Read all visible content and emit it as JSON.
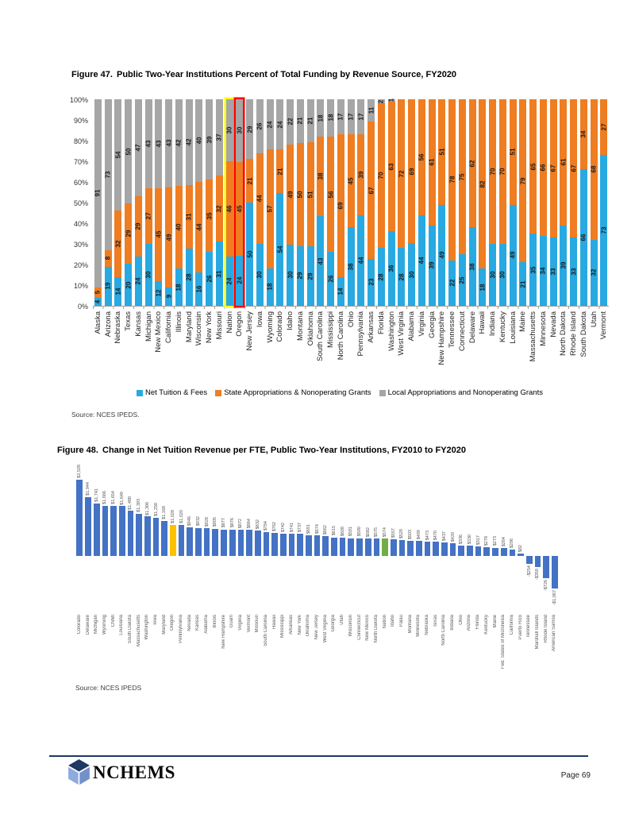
{
  "page": {
    "number_label": "Page 69",
    "brand": "NCHEMS"
  },
  "figure47": {
    "label": "Figure 47.",
    "title": "Public Two-Year Institutions Percent of Total Funding by Revenue Source, FY2020",
    "source": "Source: NCES IPEDS.",
    "y_ticks": [
      "100%",
      "90%",
      "80%",
      "70%",
      "60%",
      "50%",
      "40%",
      "30%",
      "20%",
      "10%",
      "0%"
    ]
  },
  "figure48": {
    "label": "Figure 48.",
    "title": "Change in Net Tuition Revenue per FTE, Public Two-Year Institutions, FY2010 to FY2020",
    "source": "Source: NCES IPEDS"
  },
  "chart_data": [
    {
      "id": "fig47",
      "type": "bar",
      "subtype": "stacked-100-percent",
      "title": "Public Two-Year Institutions Percent of Total Funding by Revenue Source, FY2020",
      "ylabel": "",
      "xlabel": "",
      "ylim": [
        0,
        100
      ],
      "grid": false,
      "legend_position": "bottom",
      "categories": [
        "Alaska",
        "Arizona",
        "Nebraska",
        "Texas",
        "Kansas",
        "Michigan",
        "New Mexico",
        "California",
        "Illinois",
        "Maryland",
        "Wisconsin",
        "New York",
        "Missouri",
        "Nation",
        "Oregon",
        "New Jersey",
        "Iowa",
        "Wyoming",
        "Colorado",
        "Idaho",
        "Montana",
        "Oklahoma",
        "South Carolina",
        "Mississippi",
        "North Carolina",
        "Ohio",
        "Pennsylvania",
        "Arkansas",
        "Florida",
        "Washington",
        "West Virginia",
        "Alabama",
        "Virginia",
        "Georgia",
        "New Hampshire",
        "Tennessee",
        "Connecticut",
        "Delaware",
        "Hawaii",
        "Indiana",
        "Kentucky",
        "Louisiana",
        "Maine",
        "Massachusetts",
        "Minnesota",
        "Nevada",
        "North Dakota",
        "Rhode Island",
        "South Dakota",
        "Utah",
        "Vermont"
      ],
      "series": [
        {
          "name": "Net Tuition & Fees",
          "color": "#29A9E1",
          "values": [
            4,
            19,
            14,
            20,
            24,
            30,
            12,
            9,
            18,
            28,
            16,
            26,
            31,
            24,
            24,
            50,
            30,
            18,
            54,
            30,
            29,
            29,
            43,
            26,
            14,
            38,
            44,
            23,
            28,
            36,
            28,
            30,
            44,
            39,
            49,
            22,
            25,
            38,
            18,
            30,
            30,
            49,
            21,
            35,
            34,
            33,
            39,
            33,
            66,
            32,
            73
          ]
        },
        {
          "name": "State Appropriations & Nonoperating Grants",
          "color": "#EF7D22",
          "values": [
            5,
            8,
            32,
            29,
            29,
            27,
            45,
            49,
            40,
            31,
            44,
            35,
            32,
            46,
            45,
            21,
            44,
            57,
            21,
            49,
            50,
            51,
            38,
            56,
            69,
            45,
            39,
            67,
            70,
            63,
            72,
            69,
            56,
            61,
            51,
            78,
            75,
            62,
            82,
            70,
            70,
            51,
            79,
            65,
            66,
            67,
            61,
            67,
            34,
            68,
            27
          ]
        },
        {
          "name": "Local Appropriations and Nonoperating Grants",
          "color": "#A6A6A6",
          "values": [
            91,
            73,
            54,
            50,
            47,
            43,
            43,
            43,
            42,
            42,
            40,
            39,
            37,
            30,
            30,
            29,
            26,
            24,
            24,
            22,
            21,
            21,
            18,
            18,
            17,
            17,
            17,
            11,
            2,
            1,
            0,
            0,
            0,
            0,
            0,
            0,
            0,
            0,
            0,
            0,
            0,
            0,
            0,
            0,
            0,
            0,
            0,
            0,
            0,
            0,
            0
          ]
        }
      ],
      "highlights": [
        {
          "category": "Nation",
          "outline": "#FFFF00"
        },
        {
          "category": "Oregon",
          "outline": "#FF0000"
        }
      ]
    },
    {
      "id": "fig48",
      "type": "bar",
      "title": "Change in Net Tuition Revenue per FTE, Public Two-Year Institutions, FY2010 to FY2020",
      "ylabel": "",
      "xlabel": "",
      "grid": false,
      "default_color": "#4472C4",
      "categories": [
        "Colorado",
        "Delaware",
        "Michigan",
        "Wyoming",
        "CNMI",
        "Louisiana",
        "South Dakota",
        "Massachusetts",
        "Washington",
        "Iowa",
        "Maryland",
        "Oregon",
        "Pennsylvania",
        "Nevada",
        "Kansas",
        "Alabama",
        "Illinois",
        "New Hampshire",
        "Guam",
        "Virginia",
        "Vermont",
        "Missouri",
        "South Carolina",
        "Hawaii",
        "Mississippi",
        "Arkansas",
        "New York",
        "Oklahoma",
        "New Jersey",
        "West Virginia",
        "Georgia",
        "Utah",
        "Wisconsin",
        "Connecticut",
        "New Mexico",
        "North Dakota",
        "Nation",
        "Idaho",
        "Palau",
        "Montana",
        "Minnesota",
        "Nebraska",
        "Texas",
        "North Carolina",
        "Indiana",
        "Ohio",
        "Arizona",
        "Florida",
        "Kentucky",
        "Maine",
        "Fed. States of Micronesia",
        "California",
        "Puerto Rico",
        "Tennessee",
        "Marshall Islands",
        "Rhode Island",
        "American Samoa"
      ],
      "values": [
        2528,
        1944,
        1741,
        1666,
        1654,
        1649,
        1488,
        1393,
        1306,
        1258,
        1168,
        1028,
        1020,
        946,
        932,
        928,
        905,
        877,
        876,
        872,
        864,
        832,
        784,
        762,
        742,
        741,
        737,
        691,
        674,
        662,
        615,
        608,
        591,
        590,
        582,
        575,
        574,
        557,
        529,
        503,
        499,
        473,
        470,
        437,
        420,
        336,
        330,
        317,
        278,
        273,
        264,
        206,
        82,
        -254,
        -359,
        -726,
        -1067
      ],
      "value_labels": [
        "$2,528",
        "$1,944",
        "$1,741",
        "$1,666",
        "$1,654",
        "$1,649",
        "$1,488",
        "$1,393",
        "$1,306",
        "$1,258",
        "$1,168",
        "$1,028",
        "$1,020",
        "$946",
        "$932",
        "$928",
        "$905",
        "$877",
        "$876",
        "$872",
        "$864",
        "$832",
        "$784",
        "$762",
        "$742",
        "$741",
        "$737",
        "$691",
        "$674",
        "$662",
        "$615",
        "$608",
        "$591",
        "$590",
        "$582",
        "$575",
        "$574",
        "$557",
        "$529",
        "$503",
        "$499",
        "$473",
        "$470",
        "$437",
        "$420",
        "$336",
        "$330",
        "$317",
        "$278",
        "$273",
        "$264",
        "$206",
        "$82",
        "-$254",
        "-$359",
        "-$726",
        "-$1,067"
      ],
      "highlights": [
        {
          "category": "Oregon",
          "color": "#FFC000"
        },
        {
          "category": "Nation",
          "color": "#70AD47"
        }
      ]
    }
  ]
}
